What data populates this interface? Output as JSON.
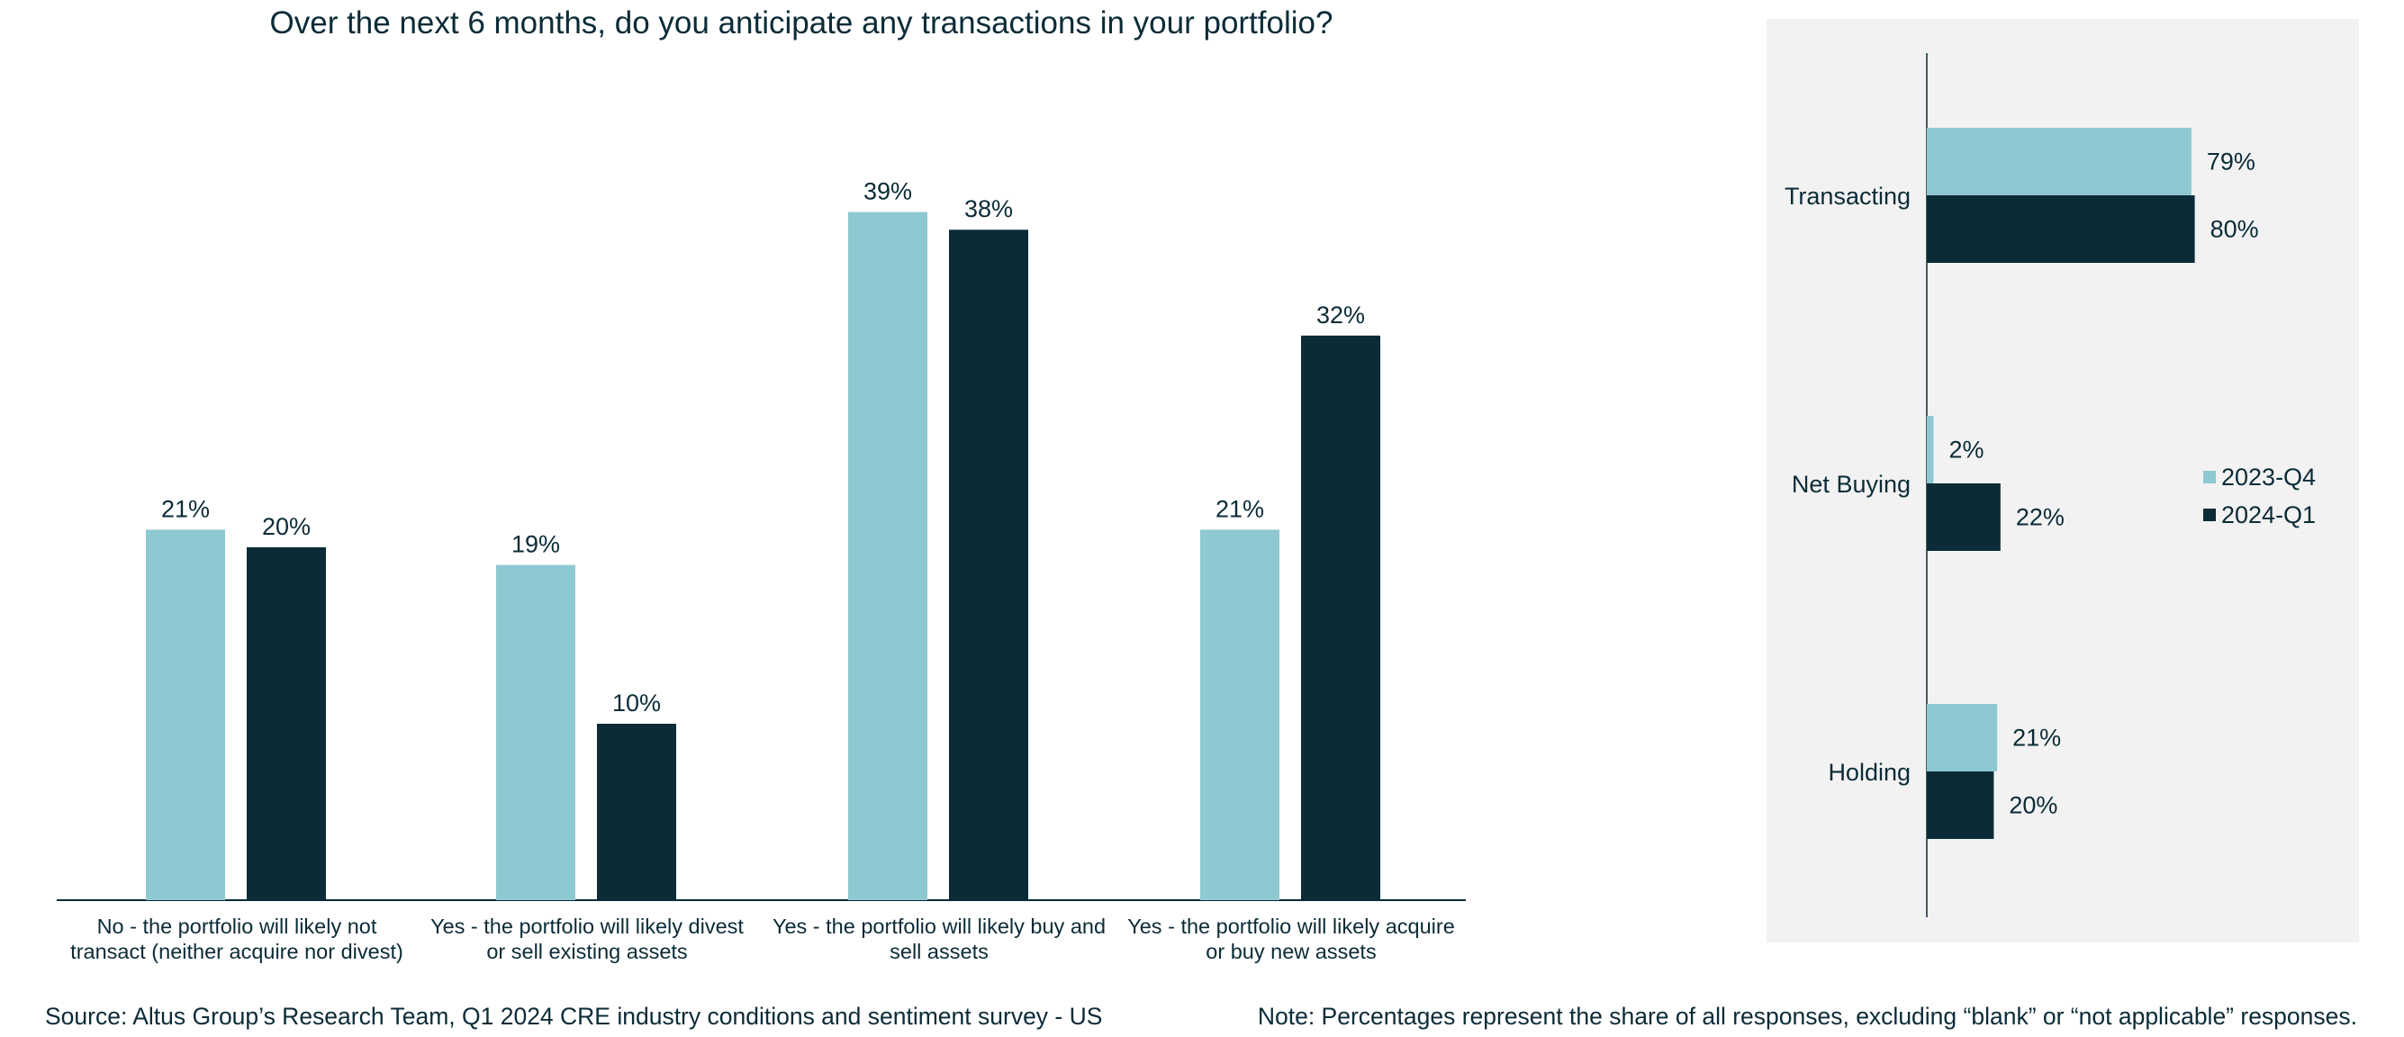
{
  "title": "Over the next 6 months, do you anticipate any transactions in your portfolio?",
  "colors": {
    "light": "#8ec8d0",
    "dark": "#0b2b37",
    "panel": "#f2f2f2"
  },
  "chart_data": [
    {
      "type": "bar",
      "title": "Over the next 6 months, do you anticipate any transactions in your portfolio?",
      "orientation": "vertical",
      "categories": [
        "No - the portfolio will likely not transact (neither acquire nor divest)",
        "Yes - the portfolio will likely divest or sell existing assets",
        "Yes - the portfolio will likely buy and sell assets",
        "Yes - the portfolio will likely acquire or buy new assets"
      ],
      "category_lines": [
        [
          "No - the portfolio will likely not",
          "transact (neither acquire nor divest)"
        ],
        [
          "Yes - the portfolio will likely divest",
          "or sell existing assets"
        ],
        [
          "Yes - the portfolio will likely buy and",
          "sell assets"
        ],
        [
          "Yes - the portfolio will likely acquire",
          "or buy new assets"
        ]
      ],
      "series": [
        {
          "name": "2023-Q4",
          "values": [
            21,
            19,
            39,
            21
          ]
        },
        {
          "name": "2024-Q1",
          "values": [
            20,
            10,
            38,
            32
          ]
        }
      ],
      "unit": "%",
      "ylim": [
        0,
        42
      ],
      "grid": false
    },
    {
      "type": "bar",
      "orientation": "horizontal",
      "categories": [
        "Transacting",
        "Net Buying",
        "Holding"
      ],
      "series": [
        {
          "name": "2023-Q4",
          "values": [
            79,
            2,
            21
          ]
        },
        {
          "name": "2024-Q1",
          "values": [
            80,
            22,
            20
          ]
        }
      ],
      "unit": "%",
      "xlim": [
        0,
        100
      ],
      "legend": "right",
      "grid": false
    }
  ],
  "legend": [
    {
      "name": "2023-Q4"
    },
    {
      "name": "2024-Q1"
    }
  ],
  "footer": {
    "source": "Source: Altus Group’s Research Team, Q1 2024 CRE industry conditions and sentiment survey - US",
    "note": "Note: Percentages represent the share of all responses, excluding “blank” or “not applicable” responses."
  }
}
